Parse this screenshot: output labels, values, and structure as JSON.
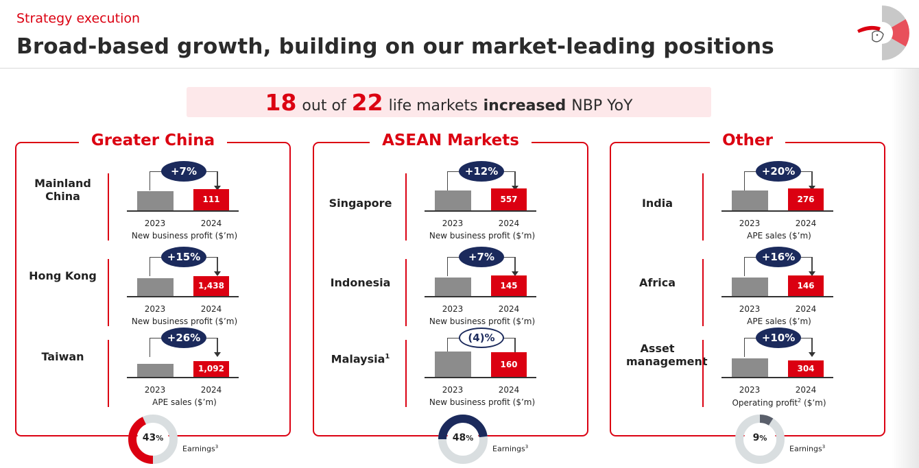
{
  "header": {
    "kicker": "Strategy execution",
    "title": "Broad-based growth, building on our market-leading positions"
  },
  "banner": {
    "num1": "18",
    "t1": "out of",
    "num2": "22",
    "t2": "life markets",
    "t3": "increased",
    "t4": "NBP YoY"
  },
  "colors": {
    "accent": "#db0011",
    "navy": "#1b2a5c",
    "bar_2023": "#8c8c8c"
  },
  "year_labels": {
    "y1": "2023",
    "y2": "2024"
  },
  "panels": [
    {
      "title": "Greater China",
      "rows": [
        {
          "market": "Mainland China",
          "change": "+7%",
          "v2024": "111",
          "metric": "New business profit ($’m)"
        },
        {
          "market": "Hong Kong",
          "change": "+15%",
          "v2024": "1,438",
          "metric": "New business profit ($’m)"
        },
        {
          "market": "Taiwan",
          "change": "+26%",
          "v2024": "1,092",
          "metric": "APE sales ($’m)"
        }
      ],
      "earnings": {
        "value": "43",
        "unit": "%",
        "label": "Earnings",
        "sup": "3",
        "share": 0.43
      }
    },
    {
      "title": "ASEAN Markets",
      "rows": [
        {
          "market": "Singapore",
          "change": "+12%",
          "v2024": "557",
          "metric": "New business profit ($’m)"
        },
        {
          "market": "Indonesia",
          "change": "+7%",
          "v2024": "145",
          "metric": "New business profit ($’m)"
        },
        {
          "market": "Malaysia",
          "market_sup": "1",
          "change": "(4)%",
          "v2024": "160",
          "metric": "New business profit ($’m)"
        }
      ],
      "earnings": {
        "value": "48",
        "unit": "%",
        "label": "Earnings",
        "sup": "3",
        "share": 0.48
      }
    },
    {
      "title": "Other",
      "rows": [
        {
          "market": "India",
          "change": "+20%",
          "v2024": "276",
          "metric": "APE sales ($’m)"
        },
        {
          "market": "Africa",
          "change": "+16%",
          "v2024": "146",
          "metric": "APE sales ($’m)"
        },
        {
          "market": "Asset management",
          "change": "+10%",
          "v2024": "304",
          "metric": "Operating profit",
          "metric_sup": "2",
          "metric_unit": " ($’m)"
        }
      ],
      "earnings": {
        "value": "9",
        "unit": "%",
        "label": "Earnings",
        "sup": "3",
        "share": 0.09
      }
    }
  ]
}
